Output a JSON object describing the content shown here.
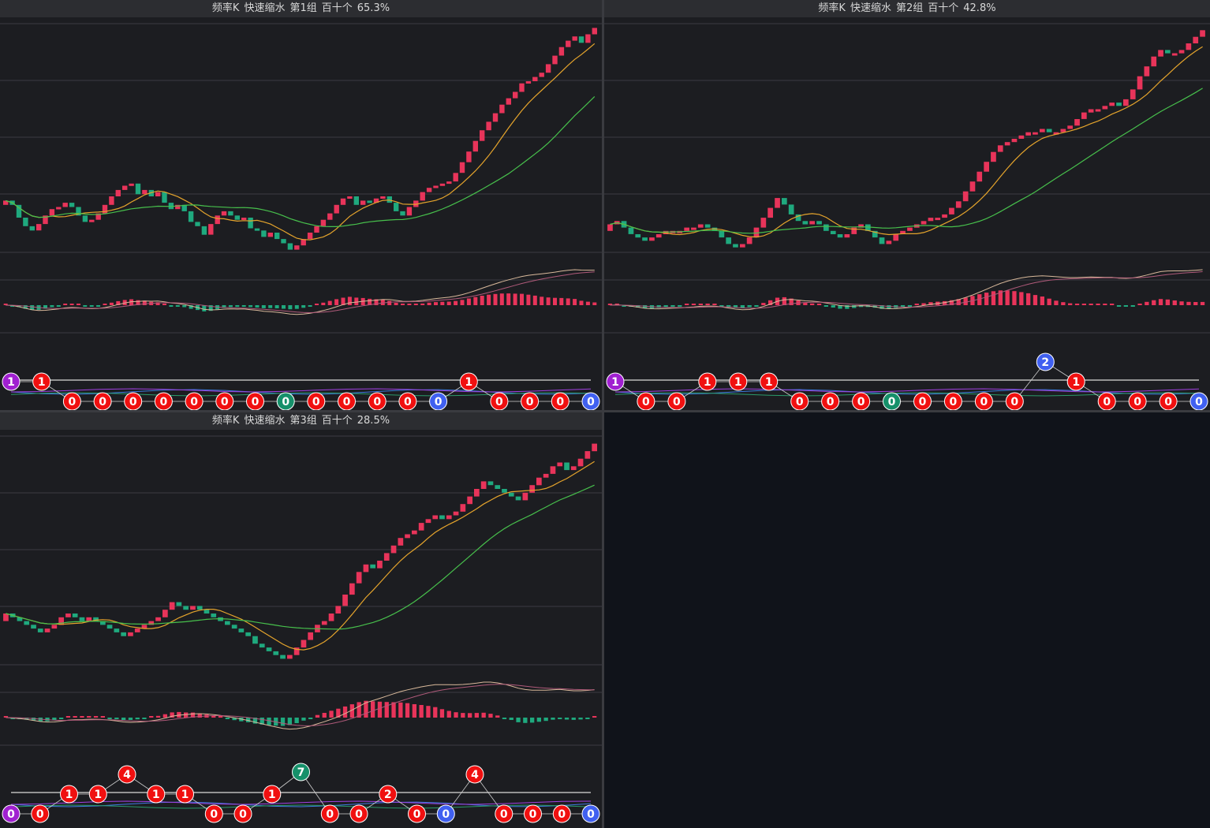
{
  "colors": {
    "up": "#e8345a",
    "down": "#1fa97e",
    "ma_short": "#e5a42c",
    "ma_long": "#47c04c",
    "dif": "#d9b99b",
    "dea": "#b05a7a",
    "badge_red": "#f01010",
    "badge_green": "#16906a",
    "badge_blue": "#4060f0",
    "badge_purple": "#a020d0",
    "line_gray": "#bbbbbb",
    "line_blue": "#3d7ae0",
    "line_purple": "#a040e0",
    "line_green": "#2a9a6a"
  },
  "panels": [
    {
      "id": "panel-1",
      "header": {
        "name": "频率K",
        "mode": "快速缩水",
        "group": "第1组",
        "unit": "百十个",
        "pct": "65.3%"
      },
      "chart_data": {
        "type": "candlestick",
        "close": [
          53,
          51,
          45,
          41,
          39,
          42,
          46,
          49,
          50,
          52,
          50,
          46,
          43,
          44,
          47,
          51,
          55,
          58,
          60,
          61,
          56,
          58,
          55,
          57,
          52,
          49,
          51,
          48,
          43,
          41,
          37,
          42,
          46,
          48,
          46,
          44,
          45,
          40,
          39,
          36,
          38,
          35,
          33,
          30,
          32,
          35,
          38,
          41,
          44,
          47,
          51,
          54,
          55,
          51,
          53,
          52,
          54,
          55,
          52,
          48,
          46,
          50,
          53,
          57,
          59,
          60,
          61,
          62,
          66,
          71,
          76,
          81,
          86,
          90,
          94,
          98,
          101,
          104,
          108,
          109,
          111,
          113,
          117,
          121,
          125,
          128,
          130,
          127,
          131,
          134
        ]
      },
      "badges": [
        "1",
        "1",
        "0",
        "0",
        "0",
        "0",
        "0",
        "0",
        "0",
        "0",
        "0",
        "0",
        "0",
        "0",
        "0",
        "1",
        "0",
        "0",
        "0",
        "0"
      ],
      "badge_colors": [
        "purple",
        "red",
        "red",
        "red",
        "red",
        "red",
        "red",
        "red",
        "red",
        "green",
        "red",
        "red",
        "red",
        "red",
        "blue",
        "red",
        "red",
        "red",
        "red",
        "blue"
      ],
      "badge_rows": [
        1,
        1,
        2,
        2,
        2,
        2,
        2,
        2,
        2,
        2,
        2,
        2,
        2,
        2,
        2,
        1,
        2,
        2,
        2,
        2
      ]
    },
    {
      "id": "panel-2",
      "header": {
        "name": "频率K",
        "mode": "快速缩水",
        "group": "第2组",
        "unit": "百十个",
        "pct": "42.8%"
      },
      "chart_data": {
        "type": "candlestick",
        "close": [
          44,
          45,
          43,
          41,
          40,
          39,
          40,
          41,
          42,
          42,
          42,
          43,
          43,
          44,
          43,
          42,
          40,
          38,
          37,
          38,
          40,
          43,
          46,
          49,
          52,
          50,
          47,
          45,
          44,
          45,
          44,
          42,
          41,
          40,
          41,
          43,
          44,
          42,
          40,
          38,
          39,
          41,
          42,
          43,
          44,
          45,
          46,
          46,
          47,
          49,
          51,
          54,
          57,
          60,
          63,
          66,
          68,
          69,
          70,
          71,
          72,
          72,
          73,
          72,
          72,
          73,
          74,
          76,
          78,
          79,
          79,
          80,
          81,
          80,
          82,
          85,
          89,
          92,
          95,
          97,
          96,
          96,
          97,
          99,
          101,
          103
        ]
      },
      "badges": [
        "1",
        "0",
        "0",
        "1",
        "1",
        "1",
        "0",
        "0",
        "0",
        "0",
        "0",
        "0",
        "0",
        "0",
        "2",
        "1",
        "0",
        "0",
        "0",
        "0"
      ],
      "badge_colors": [
        "purple",
        "red",
        "red",
        "red",
        "red",
        "red",
        "red",
        "red",
        "red",
        "green",
        "red",
        "red",
        "red",
        "red",
        "blue",
        "red",
        "red",
        "red",
        "red",
        "blue"
      ],
      "badge_rows": [
        1,
        2,
        2,
        1,
        1,
        1,
        2,
        2,
        2,
        2,
        2,
        2,
        2,
        2,
        0,
        1,
        2,
        2,
        2,
        2
      ]
    },
    {
      "id": "panel-3",
      "header": {
        "name": "频率K",
        "mode": "快速缩水",
        "group": "第3组",
        "unit": "百十个",
        "pct": "28.5%"
      },
      "chart_data": {
        "type": "candlestick",
        "close": [
          46,
          45,
          44,
          43,
          42,
          41,
          42,
          43,
          45,
          46,
          45,
          44,
          45,
          44,
          43,
          42,
          41,
          40,
          41,
          42,
          43,
          44,
          45,
          47,
          49,
          48,
          47,
          48,
          47,
          46,
          45,
          44,
          43,
          42,
          41,
          40,
          38,
          37,
          36,
          35,
          34,
          35,
          37,
          39,
          41,
          43,
          44,
          46,
          48,
          51,
          54,
          57,
          59,
          58,
          60,
          62,
          64,
          66,
          67,
          68,
          70,
          71,
          72,
          71,
          72,
          73,
          75,
          77,
          79,
          81,
          80,
          79,
          78,
          77,
          76,
          78,
          80,
          82,
          83,
          85,
          86,
          84,
          85,
          87,
          89,
          91
        ]
      },
      "badges": [
        "0",
        "0",
        "1",
        "1",
        "4",
        "1",
        "1",
        "0",
        "0",
        "1",
        "7",
        "0",
        "0",
        "2",
        "0",
        "0",
        "4",
        "0",
        "0",
        "0",
        "0"
      ],
      "badge_colors": [
        "purple",
        "red",
        "red",
        "red",
        "red",
        "red",
        "red",
        "red",
        "red",
        "red",
        "green",
        "red",
        "red",
        "red",
        "red",
        "blue",
        "red",
        "red",
        "red",
        "red",
        "blue"
      ],
      "badge_rows": [
        2,
        2,
        1,
        1,
        0,
        1,
        1,
        2,
        2,
        1,
        "top",
        2,
        2,
        1,
        2,
        2,
        0,
        2,
        2,
        2,
        2
      ]
    }
  ]
}
